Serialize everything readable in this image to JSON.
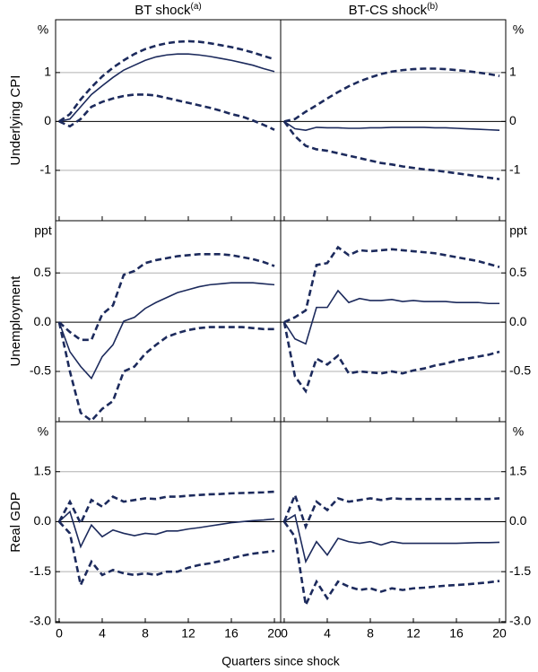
{
  "chart_data": {
    "type": "line",
    "columns": [
      {
        "title": "BT shock",
        "note": "(a)"
      },
      {
        "title": "BT-CS shock",
        "note": "(b)"
      }
    ],
    "x_label": "Quarters since shock",
    "x": [
      0,
      1,
      2,
      3,
      4,
      5,
      6,
      7,
      8,
      9,
      10,
      11,
      12,
      13,
      14,
      15,
      16,
      17,
      18,
      19,
      20
    ],
    "xlim": [
      -0.33,
      20.58
    ],
    "xticks": [
      0,
      4,
      8,
      12,
      16,
      20
    ],
    "rows": [
      {
        "label": "Underlying CPI",
        "unit": "%",
        "ylim": [
          -2.03,
          2.08
        ],
        "yticks": [
          1,
          0,
          -1
        ],
        "panels": [
          {
            "series": [
              {
                "color": "#1c2a5c",
                "dashed": false,
                "values": [
                  0,
                  0.05,
                  0.3,
                  0.55,
                  0.73,
                  0.9,
                  1.05,
                  1.15,
                  1.25,
                  1.32,
                  1.36,
                  1.38,
                  1.38,
                  1.36,
                  1.33,
                  1.29,
                  1.25,
                  1.2,
                  1.15,
                  1.08,
                  1.02
                ]
              },
              {
                "color": "#1c2a5c",
                "dashed": true,
                "values": [
                  0,
                  0.15,
                  0.45,
                  0.7,
                  0.92,
                  1.1,
                  1.25,
                  1.38,
                  1.48,
                  1.55,
                  1.6,
                  1.63,
                  1.64,
                  1.63,
                  1.6,
                  1.56,
                  1.52,
                  1.47,
                  1.41,
                  1.34,
                  1.27
                ]
              },
              {
                "color": "#1c2a5c",
                "dashed": true,
                "values": [
                  0,
                  -0.1,
                  0.05,
                  0.3,
                  0.4,
                  0.47,
                  0.52,
                  0.55,
                  0.55,
                  0.53,
                  0.48,
                  0.43,
                  0.38,
                  0.33,
                  0.28,
                  0.22,
                  0.15,
                  0.1,
                  0.02,
                  -0.07,
                  -0.17
                ]
              }
            ]
          },
          {
            "series": [
              {
                "color": "#1c2a5c",
                "dashed": false,
                "values": [
                  0,
                  -0.15,
                  -0.18,
                  -0.12,
                  -0.13,
                  -0.13,
                  -0.14,
                  -0.14,
                  -0.13,
                  -0.13,
                  -0.12,
                  -0.12,
                  -0.12,
                  -0.12,
                  -0.13,
                  -0.13,
                  -0.14,
                  -0.15,
                  -0.16,
                  -0.17,
                  -0.18
                ]
              },
              {
                "color": "#1c2a5c",
                "dashed": true,
                "values": [
                  0,
                  0.05,
                  0.2,
                  0.33,
                  0.47,
                  0.6,
                  0.72,
                  0.82,
                  0.9,
                  0.97,
                  1.02,
                  1.05,
                  1.07,
                  1.08,
                  1.08,
                  1.07,
                  1.05,
                  1.03,
                  1.0,
                  0.97,
                  0.93
                ]
              },
              {
                "color": "#1c2a5c",
                "dashed": true,
                "values": [
                  0,
                  -0.3,
                  -0.5,
                  -0.57,
                  -0.6,
                  -0.65,
                  -0.7,
                  -0.75,
                  -0.8,
                  -0.85,
                  -0.88,
                  -0.92,
                  -0.95,
                  -0.98,
                  -1.0,
                  -1.03,
                  -1.06,
                  -1.09,
                  -1.12,
                  -1.15,
                  -1.18
                ]
              }
            ]
          }
        ]
      },
      {
        "label": "Unemployment",
        "unit": "ppt",
        "ylim": [
          -1.01,
          1.03
        ],
        "yticks": [
          0.5,
          {
            "value": 0,
            "label": "0.0"
          },
          -0.5
        ],
        "panels": [
          {
            "series": [
              {
                "color": "#1c2a5c",
                "dashed": false,
                "values": [
                  0,
                  -0.3,
                  -0.45,
                  -0.57,
                  -0.35,
                  -0.23,
                  0.01,
                  0.05,
                  0.14,
                  0.2,
                  0.25,
                  0.3,
                  0.33,
                  0.36,
                  0.38,
                  0.39,
                  0.4,
                  0.4,
                  0.4,
                  0.39,
                  0.38
                ]
              },
              {
                "color": "#1c2a5c",
                "dashed": true,
                "values": [
                  0,
                  -0.1,
                  -0.18,
                  -0.18,
                  0.08,
                  0.17,
                  0.48,
                  0.52,
                  0.6,
                  0.63,
                  0.65,
                  0.67,
                  0.68,
                  0.69,
                  0.69,
                  0.69,
                  0.68,
                  0.66,
                  0.64,
                  0.61,
                  0.57
                ]
              },
              {
                "color": "#1c2a5c",
                "dashed": true,
                "values": [
                  0,
                  -0.5,
                  -0.92,
                  -1.0,
                  -0.88,
                  -0.8,
                  -0.5,
                  -0.45,
                  -0.32,
                  -0.23,
                  -0.15,
                  -0.11,
                  -0.08,
                  -0.06,
                  -0.05,
                  -0.05,
                  -0.05,
                  -0.05,
                  -0.06,
                  -0.07,
                  -0.07
                ]
              }
            ]
          },
          {
            "series": [
              {
                "color": "#1c2a5c",
                "dashed": false,
                "values": [
                  0,
                  -0.17,
                  -0.22,
                  0.15,
                  0.15,
                  0.32,
                  0.2,
                  0.24,
                  0.22,
                  0.22,
                  0.23,
                  0.21,
                  0.22,
                  0.21,
                  0.21,
                  0.21,
                  0.2,
                  0.2,
                  0.2,
                  0.19,
                  0.19
                ]
              },
              {
                "color": "#1c2a5c",
                "dashed": true,
                "values": [
                  0,
                  0.05,
                  0.12,
                  0.58,
                  0.6,
                  0.76,
                  0.68,
                  0.73,
                  0.72,
                  0.73,
                  0.74,
                  0.73,
                  0.72,
                  0.71,
                  0.7,
                  0.68,
                  0.66,
                  0.64,
                  0.62,
                  0.59,
                  0.56
                ]
              },
              {
                "color": "#1c2a5c",
                "dashed": true,
                "values": [
                  0,
                  -0.55,
                  -0.7,
                  -0.37,
                  -0.43,
                  -0.34,
                  -0.52,
                  -0.5,
                  -0.51,
                  -0.52,
                  -0.5,
                  -0.52,
                  -0.49,
                  -0.47,
                  -0.44,
                  -0.42,
                  -0.39,
                  -0.37,
                  -0.35,
                  -0.33,
                  -0.3
                ]
              }
            ]
          }
        ]
      },
      {
        "label": "Real GDP",
        "unit": "%",
        "ylim": [
          -3.03,
          3.0
        ],
        "yticks": [
          1.5,
          {
            "value": 0,
            "label": "0.0"
          },
          -1.5,
          {
            "value": -3,
            "label": "-3.0"
          }
        ],
        "panels": [
          {
            "series": [
              {
                "color": "#1c2a5c",
                "dashed": false,
                "values": [
                  0,
                  0.3,
                  -0.75,
                  -0.1,
                  -0.45,
                  -0.25,
                  -0.35,
                  -0.42,
                  -0.35,
                  -0.38,
                  -0.28,
                  -0.28,
                  -0.22,
                  -0.18,
                  -0.13,
                  -0.08,
                  -0.03,
                  0.0,
                  0.03,
                  0.05,
                  0.08
                ]
              },
              {
                "color": "#1c2a5c",
                "dashed": true,
                "values": [
                  0,
                  0.6,
                  -0.05,
                  0.65,
                  0.45,
                  0.75,
                  0.6,
                  0.65,
                  0.7,
                  0.68,
                  0.75,
                  0.75,
                  0.78,
                  0.8,
                  0.82,
                  0.83,
                  0.85,
                  0.86,
                  0.87,
                  0.88,
                  0.9
                ]
              },
              {
                "color": "#1c2a5c",
                "dashed": true,
                "values": [
                  0,
                  -0.35,
                  -1.9,
                  -1.2,
                  -1.6,
                  -1.45,
                  -1.55,
                  -1.6,
                  -1.55,
                  -1.6,
                  -1.5,
                  -1.5,
                  -1.38,
                  -1.3,
                  -1.25,
                  -1.18,
                  -1.1,
                  -1.02,
                  -0.96,
                  -0.92,
                  -0.88
                ]
              }
            ]
          },
          {
            "series": [
              {
                "color": "#1c2a5c",
                "dashed": false,
                "values": [
                  0,
                  0.2,
                  -1.2,
                  -0.6,
                  -1.0,
                  -0.5,
                  -0.6,
                  -0.65,
                  -0.6,
                  -0.7,
                  -0.6,
                  -0.65,
                  -0.65,
                  -0.65,
                  -0.65,
                  -0.65,
                  -0.65,
                  -0.64,
                  -0.63,
                  -0.63,
                  -0.62
                ]
              },
              {
                "color": "#1c2a5c",
                "dashed": true,
                "values": [
                  0,
                  0.8,
                  -0.15,
                  0.6,
                  0.35,
                  0.7,
                  0.6,
                  0.65,
                  0.7,
                  0.65,
                  0.7,
                  0.68,
                  0.68,
                  0.68,
                  0.68,
                  0.68,
                  0.68,
                  0.68,
                  0.68,
                  0.68,
                  0.7
                ]
              },
              {
                "color": "#1c2a5c",
                "dashed": true,
                "values": [
                  0,
                  -0.45,
                  -2.5,
                  -1.8,
                  -2.3,
                  -1.8,
                  -1.95,
                  -2.05,
                  -2.0,
                  -2.1,
                  -2.0,
                  -2.05,
                  -2.0,
                  -1.98,
                  -1.95,
                  -1.92,
                  -1.9,
                  -1.88,
                  -1.85,
                  -1.82,
                  -1.78
                ]
              }
            ]
          }
        ]
      }
    ]
  }
}
